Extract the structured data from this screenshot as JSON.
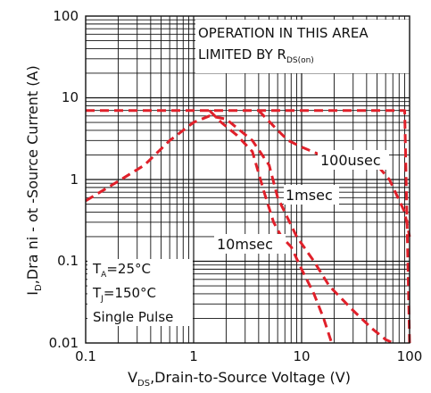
{
  "chart_data": {
    "type": "line",
    "x_scale": "log",
    "y_scale": "log",
    "xlim": [
      0.1,
      100
    ],
    "ylim": [
      0.01,
      100
    ],
    "x_ticks": [
      "0.1",
      "1",
      "10",
      "100"
    ],
    "y_ticks": [
      "100",
      "10",
      "1",
      "0.1",
      "0.01"
    ],
    "grid": true,
    "xlabel": {
      "prefix": "V",
      "sub": "DS",
      "rest": ",Drain-to-Source Voltage (V)"
    },
    "ylabel": {
      "prefix": "I",
      "sub": "D",
      "rest": ",Dra ni - ot -Source Current (A)"
    },
    "area_note": {
      "line1": "OPERATION IN THIS AREA",
      "line2_prefix": "LIMITED BY R",
      "line2_sub": "DS(on)"
    },
    "conditions": {
      "ta_prefix": "T",
      "ta_sub": "A",
      "ta_rest": "=25°C",
      "tj_prefix": "T",
      "tj_sub": "J",
      "tj_rest": "=150°C",
      "pulse": "Single Pulse"
    },
    "line_color": "#e0202a",
    "series": [
      {
        "name": "100usec",
        "x": [
          0.1,
          0.2,
          0.5,
          1.0,
          1.4,
          2.5,
          3.5,
          4.0,
          10,
          25,
          50,
          70,
          90,
          100
        ],
        "y": [
          7.0,
          7.0,
          7.0,
          7.0,
          7.0,
          7.0,
          7.0,
          7.0,
          7.0,
          7.0,
          7.0,
          7.0,
          7.0,
          0.01
        ]
      },
      {
        "name": "1msec",
        "x": [
          4.0,
          6.0,
          7.5,
          10,
          15,
          20,
          25,
          30,
          40,
          50,
          65,
          90,
          100
        ],
        "y": [
          7.0,
          4.0,
          3.0,
          2.5,
          2.0,
          1.8,
          2.0,
          2.2,
          2.0,
          1.5,
          1.0,
          0.4,
          0.2
        ]
      },
      {
        "name": "10msec",
        "x": [
          0.1,
          0.2,
          0.35,
          0.6,
          1.0,
          1.4,
          2.0,
          3.5,
          5.0,
          6.0,
          9.0,
          13,
          18,
          30,
          45,
          60,
          70
        ],
        "y": [
          0.55,
          0.95,
          1.5,
          3.0,
          5.0,
          6.0,
          5.5,
          3.0,
          1.5,
          0.6,
          0.2,
          0.1,
          0.05,
          0.025,
          0.015,
          0.011,
          0.01
        ]
      },
      {
        "name": "",
        "x": [
          1.4,
          1.8,
          2.5,
          3.5,
          4.0,
          4.5,
          5.5,
          6.5,
          8.0,
          10,
          13,
          16,
          19
        ],
        "y": [
          7.0,
          5.0,
          3.5,
          2.2,
          1.2,
          0.7,
          0.3,
          0.2,
          0.15,
          0.08,
          0.04,
          0.02,
          0.01
        ]
      }
    ],
    "series_labels": [
      "100usec",
      "1msec",
      "10msec"
    ]
  }
}
